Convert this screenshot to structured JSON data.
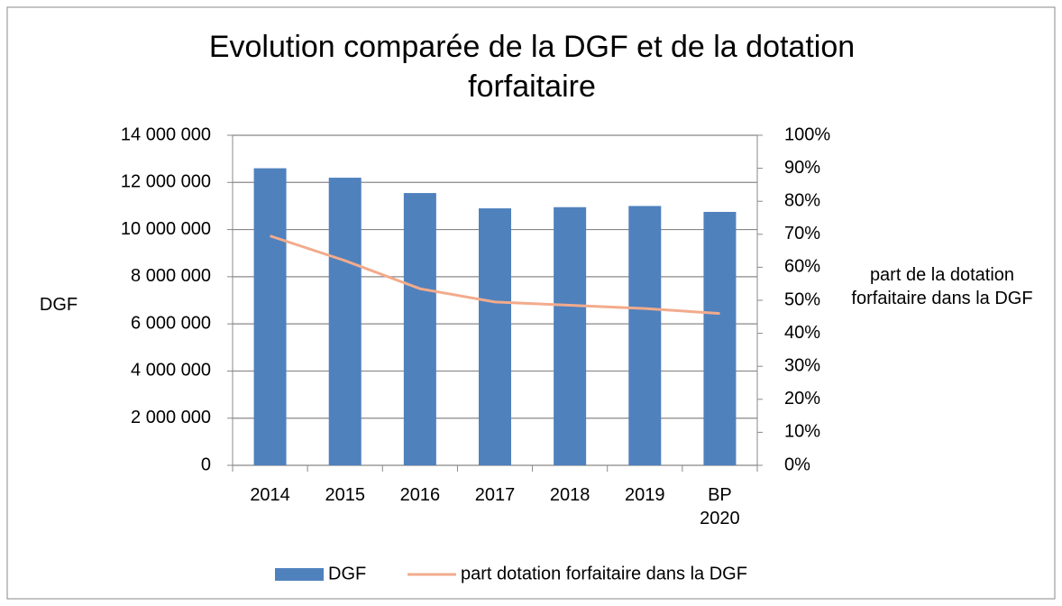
{
  "chart_data": {
    "type": "bar",
    "title": "Evolution comparée de la DGF et de la dotation forfaitaire",
    "y_label": "DGF",
    "y2_label": "part de la dotation forfaitaire dans la DGF",
    "categories": [
      "2014",
      "2015",
      "2016",
      "2017",
      "2018",
      "2019",
      "BP 2020"
    ],
    "series": [
      {
        "name": "DGF",
        "type": "bar",
        "color": "#4f81bd",
        "values": [
          12600000,
          12200000,
          11550000,
          10900000,
          10950000,
          11000000,
          10750000
        ]
      },
      {
        "name": "part dotation forfaitaire dans la DGF",
        "type": "line",
        "axis": "y2",
        "color": "#f2ab8c",
        "values": [
          69.5,
          62,
          53.5,
          49.5,
          48.5,
          47.5,
          46
        ]
      }
    ],
    "ylim": [
      0,
      14000000
    ],
    "yticks": [
      0,
      {
        "value": 2000000,
        "label": "2 000 000"
      },
      {
        "value": 4000000,
        "label": "4 000 000"
      },
      {
        "value": 6000000,
        "label": "6 000 000"
      },
      {
        "value": 8000000,
        "label": "8 000 000"
      },
      {
        "value": 10000000,
        "label": "10 000 000"
      },
      {
        "value": 12000000,
        "label": "12 000 000"
      },
      {
        "value": 14000000,
        "label": "14 000 000"
      }
    ],
    "y2lim": [
      0,
      100
    ],
    "y2ticks": [
      {
        "value": 0,
        "label": "0%"
      },
      {
        "value": 10,
        "label": "10%"
      },
      {
        "value": 20,
        "label": "20%"
      },
      {
        "value": 30,
        "label": "30%"
      },
      {
        "value": 40,
        "label": "40%"
      },
      {
        "value": 50,
        "label": "50%"
      },
      {
        "value": 60,
        "label": "60%"
      },
      {
        "value": 70,
        "label": "70%"
      },
      {
        "value": 80,
        "label": "80%"
      },
      {
        "value": 90,
        "label": "90%"
      },
      {
        "value": 100,
        "label": "100%"
      }
    ],
    "grid": true,
    "legend": "bottom"
  }
}
